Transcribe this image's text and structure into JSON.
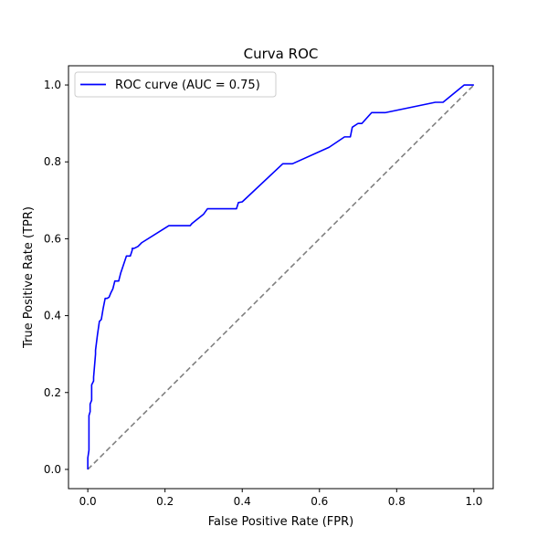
{
  "chart_data": {
    "type": "line",
    "title": "Curva ROC",
    "xlabel": "False Positive Rate (FPR)",
    "ylabel": "True Positive Rate (TPR)",
    "xlim": [
      -0.05,
      1.05
    ],
    "ylim": [
      -0.05,
      1.05
    ],
    "xticks": [
      0.0,
      0.2,
      0.4,
      0.6,
      0.8,
      1.0
    ],
    "yticks": [
      0.0,
      0.2,
      0.4,
      0.6,
      0.8,
      1.0
    ],
    "xtick_labels": [
      "0.0",
      "0.2",
      "0.4",
      "0.6",
      "0.8",
      "1.0"
    ],
    "ytick_labels": [
      "0.0",
      "0.2",
      "0.4",
      "0.6",
      "0.8",
      "1.0"
    ],
    "grid": false,
    "legend_position": "top-left",
    "series": [
      {
        "name": "ROC curve (AUC = 0.75)",
        "color": "#0000ff",
        "style": "solid",
        "x": [
          0.0,
          0.0,
          0.003,
          0.003,
          0.006,
          0.006,
          0.01,
          0.01,
          0.015,
          0.015,
          0.02,
          0.02,
          0.025,
          0.03,
          0.035,
          0.04,
          0.045,
          0.05,
          0.055,
          0.06,
          0.065,
          0.07,
          0.075,
          0.08,
          0.085,
          0.09,
          0.1,
          0.11,
          0.115,
          0.115,
          0.12,
          0.13,
          0.14,
          0.21,
          0.265,
          0.27,
          0.3,
          0.31,
          0.385,
          0.39,
          0.4,
          0.505,
          0.53,
          0.625,
          0.665,
          0.68,
          0.685,
          0.7,
          0.71,
          0.735,
          0.77,
          0.9,
          0.92,
          0.975,
          1.0
        ],
        "y": [
          0.0,
          0.03,
          0.05,
          0.14,
          0.15,
          0.17,
          0.18,
          0.22,
          0.23,
          0.24,
          0.3,
          0.31,
          0.35,
          0.385,
          0.39,
          0.42,
          0.445,
          0.445,
          0.448,
          0.46,
          0.47,
          0.49,
          0.49,
          0.49,
          0.51,
          0.525,
          0.555,
          0.555,
          0.57,
          0.575,
          0.575,
          0.58,
          0.59,
          0.634,
          0.634,
          0.64,
          0.664,
          0.678,
          0.678,
          0.694,
          0.696,
          0.795,
          0.795,
          0.838,
          0.865,
          0.865,
          0.89,
          0.9,
          0.9,
          0.928,
          0.928,
          0.955,
          0.955,
          1.0,
          1.0
        ]
      },
      {
        "color": "#808080",
        "style": "dashed",
        "x": [
          0.0,
          1.0
        ],
        "y": [
          0.0,
          1.0
        ]
      }
    ]
  }
}
